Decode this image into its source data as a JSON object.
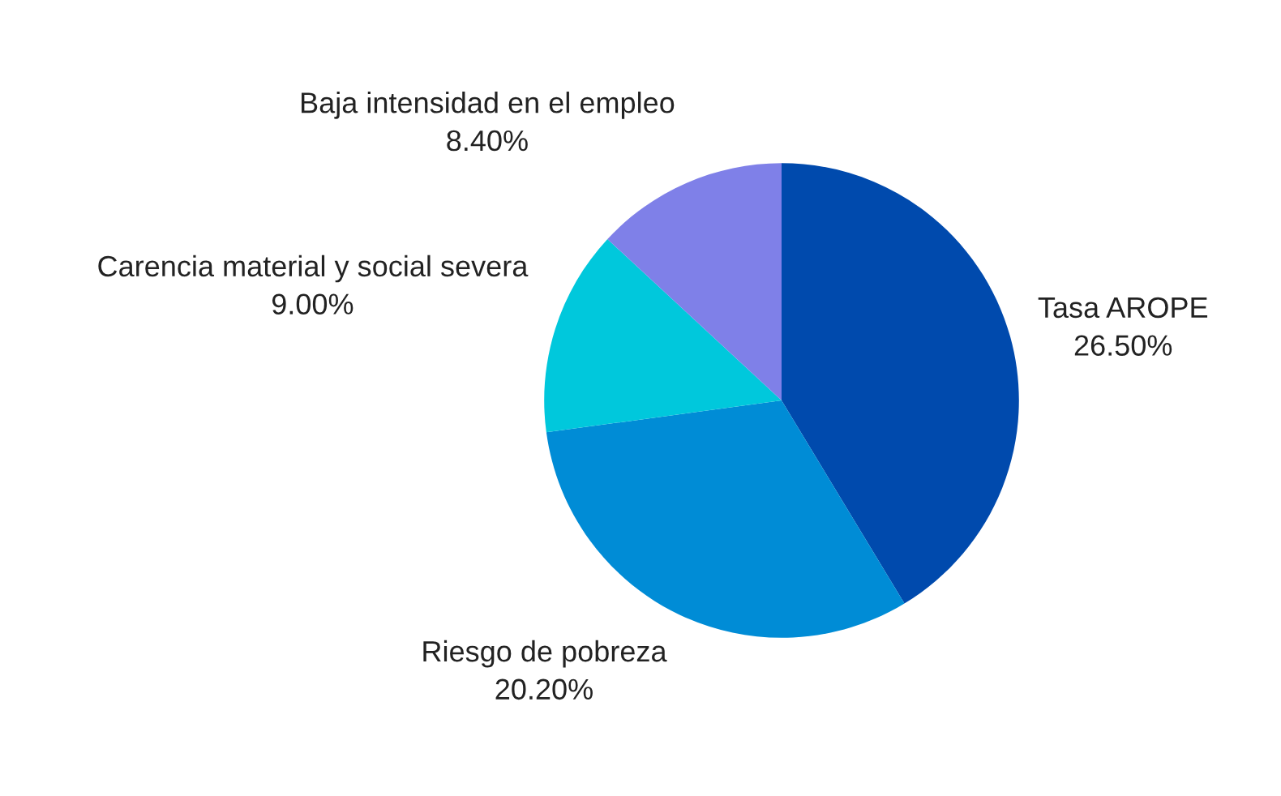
{
  "chart_data": {
    "type": "pie",
    "categories": [
      "Tasa AROPE",
      "Riesgo de pobreza",
      "Carencia material y social severa",
      "Baja intensidad en el empleo"
    ],
    "values": [
      26.5,
      20.2,
      9.0,
      8.4
    ],
    "value_labels": [
      "26.50%",
      "20.20%",
      "9.00%",
      "8.40%"
    ],
    "colors": [
      "#004aad",
      "#008cd6",
      "#00c8dc",
      "#7f80e8"
    ],
    "legend": false
  }
}
